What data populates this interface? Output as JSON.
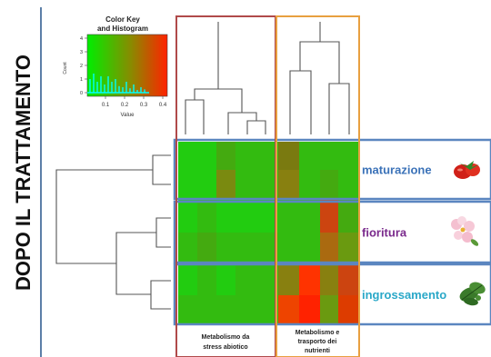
{
  "side_title": "DOPO IL TRATTAMENTO",
  "color_key": {
    "title_line1": "Color Key",
    "title_line2": "and Histogram",
    "y_axis_label": "Count",
    "x_axis_label": "Value",
    "x_ticks": [
      "0.1",
      "0.2",
      "0.3",
      "0.4"
    ],
    "y_ticks": [
      "0",
      "1",
      "2",
      "3",
      "4"
    ],
    "low_color": "#00ee00",
    "high_color": "#ff2200",
    "hist_color": "#00ffff"
  },
  "columns": {
    "group1_label": [
      "Metabolismo da",
      "stress abiotico"
    ],
    "group2_label": [
      "Metabolismo e",
      "trasporto dei",
      "nutrienti"
    ],
    "group1_border": "#b04a4a",
    "group2_border": "#e8a040"
  },
  "rows": [
    {
      "label": "maturazione",
      "color": "#3b72b8",
      "icon": "tomato-icon"
    },
    {
      "label": "fioritura",
      "color": "#7a2a8c",
      "icon": "flower-icon"
    },
    {
      "label": "ingrossamento",
      "color": "#2aa8c8",
      "icon": "leaf-icon"
    }
  ],
  "row_band_border": "#5b86c0",
  "heatmap": [
    [
      "#22cc10",
      "#22cc10",
      "#44aa10",
      "#33bb10",
      "#33bb10",
      "#7a7a10",
      "#33bb10",
      "#33bb10",
      "#33bb10"
    ],
    [
      "#22cc10",
      "#22cc10",
      "#7a8a10",
      "#33bb10",
      "#33bb10",
      "#888010",
      "#33bb10",
      "#44aa10",
      "#33bb10"
    ],
    [
      "#22cc10",
      "#33bb10",
      "#22cc10",
      "#22cc10",
      "#22cc10",
      "#33bb10",
      "#33bb10",
      "#cc4410",
      "#44aa10"
    ],
    [
      "#33bb10",
      "#44aa10",
      "#33bb10",
      "#33bb10",
      "#33bb10",
      "#33bb10",
      "#33bb10",
      "#aa6a10",
      "#6a9a10"
    ],
    [
      "#22cc10",
      "#33bb10",
      "#22cc10",
      "#33bb10",
      "#33bb10",
      "#888010",
      "#ff3300",
      "#888010",
      "#cc4410"
    ],
    [
      "#33bb10",
      "#33bb10",
      "#33bb10",
      "#33bb10",
      "#33bb10",
      "#ee4400",
      "#ff2200",
      "#6a9a10",
      "#dd3c00"
    ]
  ]
}
